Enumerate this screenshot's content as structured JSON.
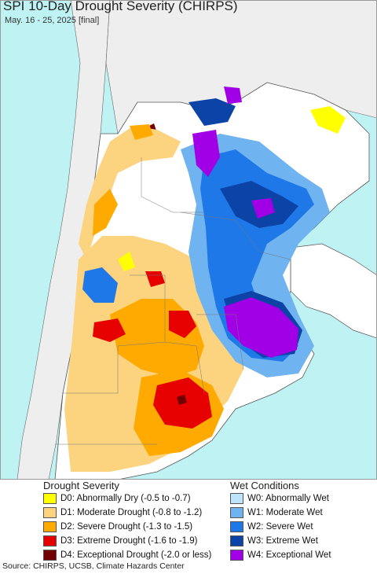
{
  "title": "SPI 10-Day Drought Severity (CHIRPS)",
  "subtitle": "May. 16 - 25, 2025 [final]",
  "colors": {
    "ocean": "#bff3f3",
    "land_outside": "#eeeeee",
    "land_normal": "#ffffff",
    "border": "#555555"
  },
  "legend": {
    "drought_heading": "Drought Severity",
    "wet_heading": "Wet Conditions",
    "drought_items": [
      {
        "label": "D0: Abnormally Dry (-0.5 to -0.7)",
        "color": "#ffff00"
      },
      {
        "label": "D1: Moderate Drought (-0.8 to -1.2)",
        "color": "#fcd37f"
      },
      {
        "label": "D2: Severe Drought (-1.3 to -1.5)",
        "color": "#ffaa00"
      },
      {
        "label": "D3: Extreme Drought (-1.6 to -1.9)",
        "color": "#e60000"
      },
      {
        "label": "D4: Exceptional Drought (-2.0 or less)",
        "color": "#730000"
      }
    ],
    "wet_items": [
      {
        "label": "W0: Abnormally Wet",
        "color": "#bde4fb"
      },
      {
        "label": "W1: Moderate Wet",
        "color": "#6fb4f0"
      },
      {
        "label": "W2: Severe Wet",
        "color": "#1f78e8"
      },
      {
        "label": "W3: Extreme Wet",
        "color": "#0c43a6"
      },
      {
        "label": "W4: Exceptional Wet",
        "color": "#a100e6"
      }
    ]
  },
  "source": "Source: CHIRPS, UCSB, Climate Hazards Center"
}
